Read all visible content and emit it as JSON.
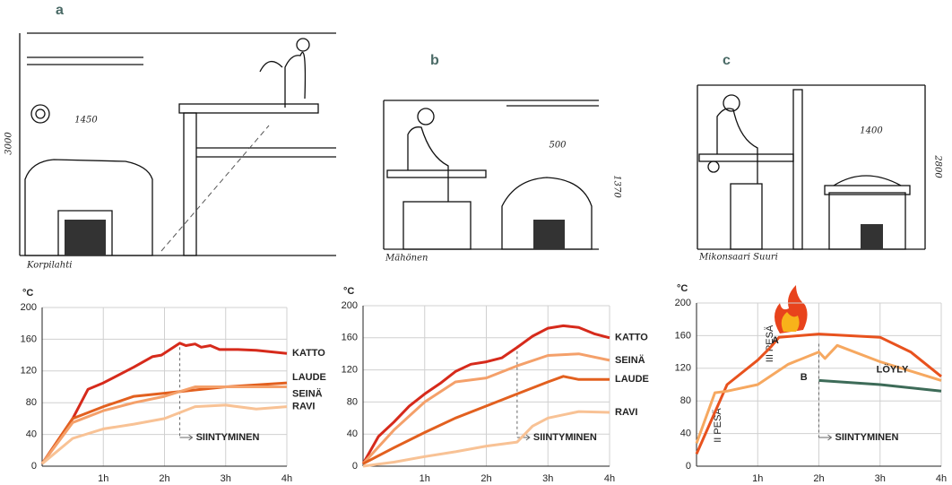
{
  "panels": [
    {
      "letter": "a",
      "caption": "Korpilahti",
      "dimensions": [
        "3000",
        "1450"
      ]
    },
    {
      "letter": "b",
      "caption": "Mähönen",
      "dimensions": [
        "500",
        "1370"
      ]
    },
    {
      "letter": "c",
      "caption": "Mikonsaari Suuri",
      "dimensions": [
        "1400",
        "2800"
      ]
    }
  ],
  "chart_data": [
    {
      "type": "line",
      "y_label": "°C",
      "xlim": [
        0,
        4
      ],
      "xticks": [
        {
          "value": 1,
          "label": "1h"
        },
        {
          "value": 2,
          "label": "2h"
        },
        {
          "value": 3,
          "label": "3h"
        },
        {
          "value": 4,
          "label": "4h"
        }
      ],
      "ylim": [
        0,
        200
      ],
      "yticks": [
        0,
        40,
        80,
        120,
        160,
        200
      ],
      "grid": true,
      "annotations": [
        {
          "text": "SIINTYMINEN",
          "x": 2.25
        }
      ],
      "series": [
        {
          "name": "KATTO",
          "color": "#d62a1b",
          "x": [
            0,
            0.5,
            0.75,
            1,
            1.5,
            1.8,
            1.95,
            2.15,
            2.25,
            2.35,
            2.5,
            2.6,
            2.75,
            2.9,
            3.2,
            3.5,
            4
          ],
          "values": [
            3,
            60,
            97,
            105,
            125,
            138,
            140,
            150,
            155,
            152,
            154,
            150,
            152,
            147,
            147,
            146,
            142
          ]
        },
        {
          "name": "LAUDE",
          "color": "#e2601f",
          "x": [
            0,
            0.5,
            1,
            1.5,
            2,
            2.5,
            3,
            4
          ],
          "values": [
            3,
            60,
            75,
            88,
            92,
            96,
            100,
            105
          ]
        },
        {
          "name": "SEINÄ",
          "color": "#f4a06a",
          "x": [
            0,
            0.5,
            1,
            1.5,
            2,
            2.5,
            3,
            4
          ],
          "values": [
            3,
            55,
            70,
            80,
            88,
            100,
            100,
            100
          ]
        },
        {
          "name": "RAVI",
          "color": "#f8c295",
          "x": [
            0,
            0.5,
            1,
            1.5,
            2,
            2.5,
            3,
            3.5,
            4
          ],
          "values": [
            3,
            35,
            47,
            53,
            60,
            75,
            77,
            72,
            75
          ]
        }
      ]
    },
    {
      "type": "line",
      "y_label": "°C",
      "xlim": [
        0,
        4
      ],
      "xticks": [
        {
          "value": 1,
          "label": "1h"
        },
        {
          "value": 2,
          "label": "2h"
        },
        {
          "value": 3,
          "label": "3h"
        },
        {
          "value": 4,
          "label": "4h"
        }
      ],
      "ylim": [
        0,
        200
      ],
      "yticks": [
        0,
        40,
        80,
        120,
        160,
        200
      ],
      "grid": true,
      "annotations": [
        {
          "text": "SIINTYMINEN",
          "x": 2.5
        }
      ],
      "series": [
        {
          "name": "KATTO",
          "color": "#d62a1b",
          "x": [
            0,
            0.25,
            0.5,
            0.75,
            1,
            1.25,
            1.5,
            1.75,
            2,
            2.25,
            2.5,
            2.75,
            3,
            3.25,
            3.5,
            3.75,
            4
          ],
          "values": [
            3,
            37,
            55,
            75,
            90,
            103,
            118,
            127,
            130,
            135,
            148,
            162,
            172,
            175,
            173,
            165,
            160
          ]
        },
        {
          "name": "SEINÄ",
          "color": "#f4a06a",
          "x": [
            0,
            0.5,
            1,
            1.5,
            2,
            2.5,
            3,
            3.5,
            4
          ],
          "values": [
            3,
            45,
            80,
            105,
            110,
            125,
            138,
            140,
            132
          ]
        },
        {
          "name": "LAUDE",
          "color": "#e2601f",
          "x": [
            0,
            0.5,
            1,
            1.5,
            2,
            2.5,
            3,
            3.25,
            3.5,
            4
          ],
          "values": [
            3,
            23,
            42,
            60,
            75,
            90,
            105,
            112,
            108,
            108
          ]
        },
        {
          "name": "RAVI",
          "color": "#f8c295",
          "x": [
            0,
            0.5,
            1,
            1.5,
            2,
            2.5,
            2.75,
            3,
            3.5,
            4
          ],
          "values": [
            0,
            5,
            12,
            18,
            25,
            30,
            50,
            60,
            68,
            67
          ]
        }
      ]
    },
    {
      "type": "line",
      "y_label": "°C",
      "xlim": [
        0,
        4
      ],
      "xticks": [
        {
          "value": 1,
          "label": "1h"
        },
        {
          "value": 2,
          "label": "2h"
        },
        {
          "value": 3,
          "label": "3h"
        },
        {
          "value": 4,
          "label": "4h"
        }
      ],
      "ylim": [
        0,
        200
      ],
      "yticks": [
        0,
        40,
        80,
        120,
        160,
        200
      ],
      "grid": true,
      "annotations": [
        {
          "text": "SIINTYMINEN",
          "x": 2
        },
        {
          "text": "III PESÄ",
          "x": 1.35
        },
        {
          "text": "II PESÄ",
          "x": 0.5
        }
      ],
      "series": [
        {
          "name": "A",
          "color": "#e8521e",
          "x": [
            0,
            0.5,
            1,
            1.2,
            1.35,
            2,
            3,
            3.5,
            4
          ],
          "values": [
            15,
            100,
            130,
            145,
            158,
            162,
            158,
            140,
            110
          ]
        },
        {
          "name": "B",
          "color": "#f6a860",
          "x": [
            0,
            0.3,
            0.5,
            1,
            1.5,
            2,
            2.1,
            2.3,
            3,
            4
          ],
          "values": [
            28,
            90,
            92,
            100,
            125,
            140,
            132,
            148,
            128,
            105
          ]
        },
        {
          "name": "LÖYLY",
          "color": "#3d6b58",
          "x": [
            2,
            3,
            4
          ],
          "values": [
            105,
            100,
            92
          ]
        }
      ]
    }
  ]
}
